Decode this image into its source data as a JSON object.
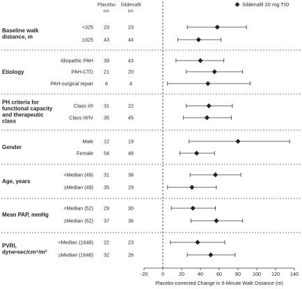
{
  "chart_data": {
    "type": "forest",
    "xlabel": "Placebo-corrected Change in 6-Minute Walk Distance (m)",
    "xlim": [
      -20,
      140
    ],
    "xticks": [
      "-20",
      "0",
      "20",
      "40",
      "60",
      "80",
      "100",
      "120",
      "140"
    ],
    "reference_line": 0,
    "columns": {
      "placebo": "Placebo",
      "sildenafil": "Sildenafil",
      "n": "n="
    },
    "legend": "Sildenafil 20 mg TID",
    "groups": [
      {
        "label": [
          "Baseline walk",
          "distance, m"
        ],
        "rows": [
          {
            "label": "<325",
            "n_placebo": "23",
            "n_sildenafil": "23",
            "estimate": 58,
            "ci": [
              26,
              89
            ]
          },
          {
            "label": "≥325",
            "n_placebo": "43",
            "n_sildenafil": "44",
            "estimate": 38,
            "ci": [
              16,
              62
            ]
          }
        ]
      },
      {
        "label": [
          "Etiology"
        ],
        "rows": [
          {
            "label": "Idiopathic PAH",
            "n_placebo": "39",
            "n_sildenafil": "43",
            "estimate": 40,
            "ci": [
              14,
              65
            ]
          },
          {
            "label": "PAH-CTD",
            "n_placebo": "21",
            "n_sildenafil": "20",
            "estimate": 55,
            "ci": [
              25,
              85
            ]
          },
          {
            "label": "PAH-surgical repair",
            "n_placebo": "6",
            "n_sildenafil": "4",
            "estimate": 48,
            "ci": [
              5,
              93
            ]
          }
        ]
      },
      {
        "label": [
          "PH criteria for",
          "functional capacity",
          "and therapeutic",
          "class"
        ],
        "rows": [
          {
            "label": "Class I/II",
            "n_placebo": "31",
            "n_sildenafil": "22",
            "estimate": 49,
            "ci": [
              25,
              74
            ]
          },
          {
            "label": "Class III/IV",
            "n_placebo": "35",
            "n_sildenafil": "45",
            "estimate": 47,
            "ci": [
              22,
              73
            ]
          }
        ]
      },
      {
        "label": [
          "Gender"
        ],
        "rows": [
          {
            "label": "Male",
            "n_placebo": "12",
            "n_sildenafil": "19",
            "estimate": 80,
            "ci": [
              28,
              135
            ]
          },
          {
            "label": "Female",
            "n_placebo": "54",
            "n_sildenafil": "48",
            "estimate": 36,
            "ci": [
              18,
              55
            ]
          }
        ]
      },
      {
        "label": [
          "Age, years"
        ],
        "rows": [
          {
            "label": "<Median (49)",
            "n_placebo": "31",
            "n_sildenafil": "38",
            "estimate": 56,
            "ci": [
              29,
              83
            ]
          },
          {
            "label": "≥Median (49)",
            "n_placebo": "35",
            "n_sildenafil": "29",
            "estimate": 31,
            "ci": [
              5,
              57
            ]
          }
        ]
      },
      {
        "label": [
          "Mean PAP, mmHg"
        ],
        "rows": [
          {
            "label": "<Median (52)",
            "n_placebo": "29",
            "n_sildenafil": "30",
            "estimate": 32,
            "ci": [
              9,
              56
            ]
          },
          {
            "label": "≥Median (52)",
            "n_placebo": "37",
            "n_sildenafil": "36",
            "estimate": 57,
            "ci": [
              30,
              85
            ]
          }
        ]
      },
      {
        "label": [
          "PVRI,",
          "dyne•sec/cm⁵/m²"
        ],
        "rows": [
          {
            "label": "<Median (1648)",
            "n_placebo": "22",
            "n_sildenafil": "23",
            "estimate": 37,
            "ci": [
              8,
              66
            ]
          },
          {
            "label": "≥Median (1648)",
            "n_placebo": "32",
            "n_sildenafil": "26",
            "estimate": 51,
            "ci": [
              26,
              77
            ]
          }
        ]
      }
    ]
  }
}
